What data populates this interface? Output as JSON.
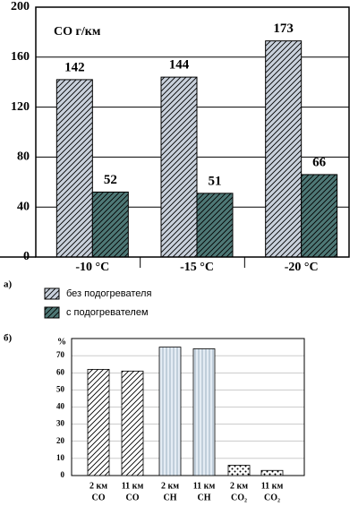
{
  "chart_data": [
    {
      "type": "grouped_bar",
      "label": "а)",
      "annotation": "CO г/км",
      "categories": [
        "-10 °C",
        "-15 °C",
        "-20 °C"
      ],
      "series": [
        {
          "name": "без подогревателя",
          "color": "#c9d1dc",
          "pattern": "hatch",
          "values": [
            142,
            144,
            173
          ]
        },
        {
          "name": "с подогревателем",
          "color": "#4e7876",
          "pattern": "hatch",
          "values": [
            52,
            51,
            66
          ]
        }
      ],
      "ylim": [
        0,
        200
      ],
      "yticks": [
        0,
        40,
        80,
        120,
        160,
        200
      ],
      "grid": true
    },
    {
      "type": "bar",
      "label": "б)",
      "ylabel": "%",
      "categories": [
        [
          "2 км",
          "CO"
        ],
        [
          "11 км",
          "CO"
        ],
        [
          "2 км",
          "CH"
        ],
        [
          "11 км",
          "CH"
        ],
        [
          "2 км",
          "CO₂"
        ],
        [
          "11 км",
          "CO₂"
        ]
      ],
      "values": [
        62,
        61,
        75,
        74,
        6,
        3
      ],
      "colors": [
        "#ffffff",
        "#ffffff",
        "#e4ecf4",
        "#e4ecf4",
        "#ffffff",
        "#ffffff"
      ],
      "patterns": [
        "hatch",
        "hatch",
        "vlines",
        "vlines",
        "dots",
        "dots"
      ],
      "ylim": [
        0,
        80
      ],
      "yticks": [
        0,
        10,
        20,
        30,
        40,
        50,
        60,
        70
      ],
      "grid": true
    }
  ]
}
